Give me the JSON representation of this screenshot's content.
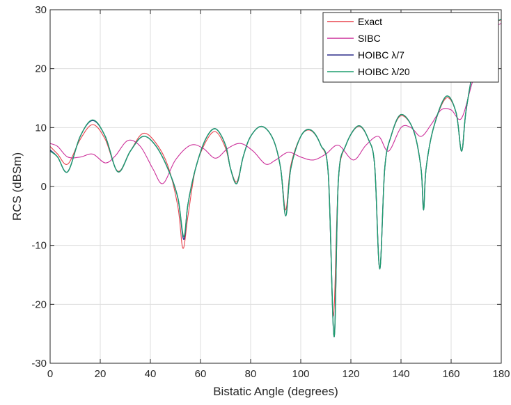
{
  "chart_data": {
    "type": "line",
    "title": "",
    "xlabel": "Bistatic Angle (degrees)",
    "ylabel": "RCS (dBSm)",
    "xlim": [
      0,
      180
    ],
    "ylim": [
      -30,
      30
    ],
    "xticks": [
      0,
      20,
      40,
      60,
      80,
      100,
      120,
      140,
      160,
      180
    ],
    "yticks": [
      -30,
      -20,
      -10,
      0,
      10,
      20,
      30
    ],
    "grid": true,
    "legend_position": "top-right",
    "series": [
      {
        "name": "Exact",
        "color": "#e8454f",
        "x": [
          0,
          3,
          7,
          12,
          17,
          22,
          27,
          32,
          37,
          42,
          47,
          51,
          53,
          55,
          58,
          62,
          66,
          70,
          72,
          74.5,
          77,
          80,
          84.5,
          89,
          92,
          94,
          96,
          100,
          104,
          108,
          111,
          113,
          115,
          118,
          123,
          127,
          129.5,
          131.5,
          133.5,
          136,
          140,
          145,
          148,
          149,
          150,
          153,
          158,
          162,
          164.2,
          166,
          170,
          175,
          180
        ],
        "y": [
          6.8,
          5.5,
          3.8,
          8.0,
          10.5,
          8.0,
          2.6,
          6.0,
          9.0,
          7.5,
          3.5,
          -3.5,
          -10.5,
          -5.0,
          3.0,
          7.5,
          9.3,
          6.5,
          3.0,
          0.8,
          5.0,
          8.5,
          10.2,
          8.0,
          3.0,
          -4.0,
          3.5,
          8.5,
          9.5,
          7.0,
          2.0,
          -22.0,
          1.0,
          7.0,
          10.2,
          8.0,
          3.5,
          -14.0,
          3.0,
          8.5,
          12.0,
          9.5,
          3.0,
          -4.0,
          3.0,
          10.0,
          15.0,
          12.5,
          6.0,
          13.0,
          22.0,
          27.0,
          28.3
        ]
      },
      {
        "name": "SIBC",
        "color": "#cc2f9a",
        "x": [
          0,
          3,
          7,
          12,
          17,
          22,
          26,
          31,
          36,
          41,
          45,
          50,
          56,
          61,
          66,
          71,
          76,
          81,
          86,
          90,
          95,
          100,
          105,
          110,
          115,
          121,
          126,
          131,
          135,
          140,
          144,
          148,
          152,
          156,
          160,
          164,
          168,
          172,
          176,
          180
        ],
        "y": [
          7.3,
          6.8,
          5.0,
          5.0,
          5.5,
          4.0,
          5.2,
          7.8,
          6.8,
          3.0,
          0.5,
          4.5,
          7.0,
          6.5,
          4.8,
          6.5,
          7.3,
          6.0,
          3.8,
          4.5,
          5.8,
          5.0,
          4.5,
          5.5,
          7.0,
          4.5,
          7.0,
          8.5,
          6.0,
          10.0,
          10.0,
          8.5,
          10.5,
          13.0,
          13.0,
          11.5,
          17.0,
          23.0,
          26.5,
          27.7
        ]
      },
      {
        "name": "HOIBC  λ/7",
        "color": "#2b2b8a",
        "x": [
          0,
          3,
          7,
          12,
          17,
          22,
          27,
          32,
          37,
          42,
          47,
          51,
          53.3,
          55,
          58,
          62,
          66,
          70,
          72,
          74.5,
          77,
          80,
          84.5,
          89,
          92,
          94,
          96,
          100,
          104,
          108,
          111,
          113.3,
          115,
          118,
          123,
          127,
          129.5,
          131.5,
          133.5,
          136,
          140,
          145,
          148,
          149,
          150,
          153,
          158,
          162,
          164.2,
          166,
          170,
          175,
          180
        ],
        "y": [
          6.2,
          5.0,
          2.5,
          8.5,
          11.2,
          8.5,
          2.5,
          6.0,
          8.5,
          7.0,
          3.0,
          -2.0,
          -9.0,
          -3.0,
          3.0,
          8.0,
          9.8,
          7.0,
          3.0,
          0.5,
          5.0,
          8.5,
          10.2,
          8.0,
          3.0,
          -5.0,
          3.0,
          8.5,
          9.6,
          7.0,
          2.0,
          -25.5,
          1.0,
          7.0,
          10.3,
          8.0,
          3.5,
          -14.0,
          3.0,
          8.5,
          12.2,
          9.5,
          3.0,
          -4.0,
          3.0,
          10.0,
          15.3,
          12.5,
          6.0,
          13.0,
          22.0,
          27.0,
          28.4
        ]
      },
      {
        "name": "HOIBC  λ/20",
        "color": "#1f9e6e",
        "x": [
          0,
          3,
          7,
          12,
          17,
          22,
          27,
          32,
          37,
          42,
          47,
          51,
          53.3,
          55,
          58,
          62,
          66,
          70,
          72,
          74.5,
          77,
          80,
          84.5,
          89,
          92,
          94,
          96,
          100,
          104,
          108,
          111,
          113.3,
          115,
          118,
          123,
          127,
          129.5,
          131.5,
          133.5,
          136,
          140,
          145,
          148,
          149,
          150,
          153,
          158,
          162,
          164.2,
          166,
          170,
          175,
          180
        ],
        "y": [
          6.0,
          5.0,
          2.5,
          8.5,
          11.3,
          8.5,
          2.5,
          6.0,
          8.5,
          7.0,
          3.0,
          -2.0,
          -8.5,
          -3.0,
          3.0,
          8.0,
          9.8,
          7.0,
          3.0,
          0.5,
          5.0,
          8.5,
          10.2,
          8.0,
          3.0,
          -5.0,
          3.0,
          8.5,
          9.6,
          7.0,
          2.0,
          -25.5,
          1.0,
          7.0,
          10.3,
          8.0,
          3.5,
          -14.0,
          3.0,
          8.5,
          12.2,
          9.5,
          3.0,
          -4.0,
          3.0,
          10.0,
          15.3,
          12.5,
          6.0,
          13.0,
          22.0,
          27.0,
          28.4
        ]
      }
    ]
  }
}
